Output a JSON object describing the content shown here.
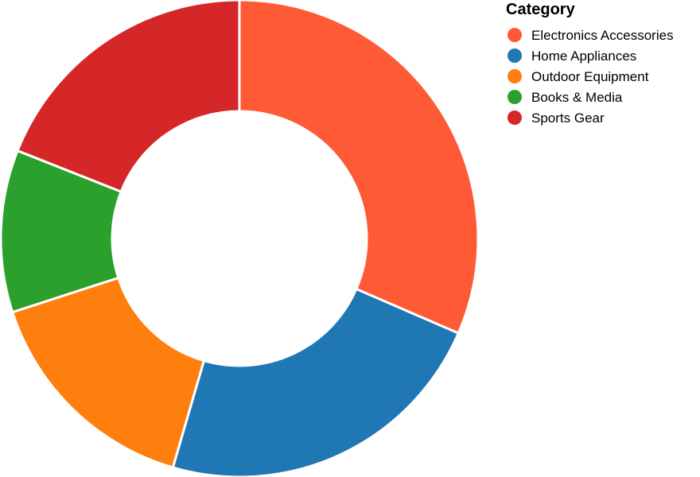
{
  "chart_data": {
    "type": "pie",
    "donut": true,
    "categories": [
      "Electronics Accessories",
      "Home Appliances",
      "Outdoor Equipment",
      "Books & Media",
      "Sports Gear"
    ],
    "values": [
      31.5,
      23.0,
      15.5,
      11.0,
      19.0
    ],
    "colors": [
      "#ff5a36",
      "#1f77b4",
      "#ff7f0e",
      "#2ca02c",
      "#d62728"
    ],
    "legend": {
      "title": "Category",
      "position": "top-right"
    },
    "title": ""
  }
}
